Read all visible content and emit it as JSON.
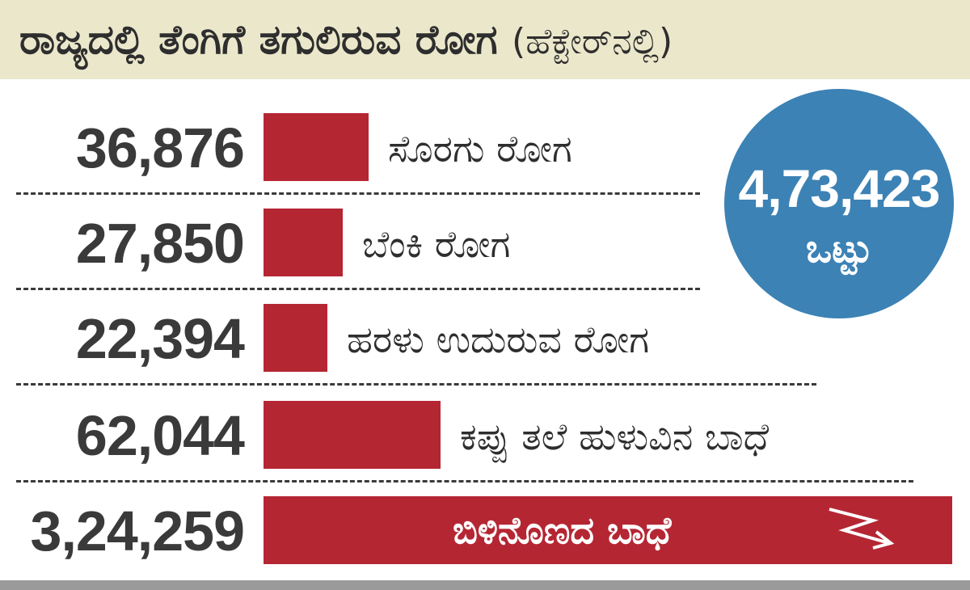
{
  "header": {
    "title": "ರಾಜ್ಯದಲ್ಲಿ ತೆಂಗಿಗೆ ತಗುಲಿರುವ ರೋಗ",
    "unit": "(ಹೆಕ್ಟೇರ್‌ನಲ್ಲಿ)"
  },
  "total": {
    "value": "4,73,423",
    "unit": "ಒಟ್ಟು"
  },
  "colors": {
    "bar": "#b52633",
    "circle": "#3c82b5",
    "header_bg": "#ebe7cb"
  },
  "chart_data": {
    "type": "bar",
    "orientation": "horizontal",
    "title": "ರಾಜ್ಯದಲ್ಲಿ ತೆಂಗಿಗೆ ತಗುಲಿರುವ ರೋಗ (ಹೆಕ್ಟೇರ್‌ನಲ್ಲಿ)",
    "categories": [
      "ಸೊರಗು ರೋಗ",
      "ಬೆಂಕಿ ರೋಗ",
      "ಹರಳು ಉದುರುವ ರೋಗ",
      "ಕಪ್ಪು ತಲೆ ಹುಳುವಿನ ಬಾಧೆ",
      "ಬಿಳಿನೊಣದ ಬಾಧೆ"
    ],
    "values": [
      36876,
      27850,
      22394,
      62044,
      324259
    ],
    "value_labels": [
      "36,876",
      "27,850",
      "22,394",
      "62,044",
      "3,24,259"
    ],
    "last_bar_truncated": true,
    "arrow_icon": "zigzag-break-arrow-icon"
  }
}
